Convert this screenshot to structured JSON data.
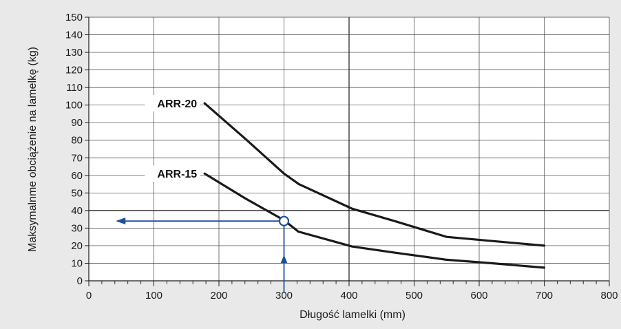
{
  "chart_data": {
    "type": "line",
    "xlabel": "Długość lamelki (mm)",
    "ylabel": "Maksymalnme obciążenie na lamelkę  (kg)",
    "xlim": [
      0,
      800
    ],
    "ylim": [
      0,
      150
    ],
    "x_ticks": [
      "0",
      "100",
      "200",
      "300",
      "400",
      "500",
      "600",
      "700",
      "800"
    ],
    "y_ticks": [
      "0",
      "10",
      "20",
      "30",
      "40",
      "50",
      "60",
      "70",
      "80",
      "90",
      "100",
      "110",
      "120",
      "130",
      "140",
      "150"
    ],
    "grid": true,
    "colors": {
      "series": "#1a1a1a",
      "guide": "#1f4f9c",
      "grid": "#3a3a3a",
      "plot_bg": "#ffffff",
      "page_bg": "#e9e9ea"
    },
    "series": [
      {
        "name": "ARR-20",
        "points": [
          [
            178,
            101
          ],
          [
            240,
            81
          ],
          [
            300,
            61
          ],
          [
            323,
            55
          ],
          [
            405,
            41
          ],
          [
            470,
            34
          ],
          [
            550,
            25
          ],
          [
            610,
            23
          ],
          [
            700,
            20
          ]
        ]
      },
      {
        "name": "ARR-15",
        "points": [
          [
            178,
            61
          ],
          [
            240,
            47
          ],
          [
            300,
            34.5
          ],
          [
            322,
            28
          ],
          [
            405,
            19.5
          ],
          [
            470,
            16
          ],
          [
            550,
            12
          ],
          [
            620,
            10
          ],
          [
            700,
            7.5
          ]
        ]
      }
    ],
    "annotation": {
      "marker_point": [
        300,
        34
      ],
      "guide_x": 300,
      "guide_y": 34,
      "arrow_up_to": [
        300,
        12
      ],
      "arrow_left_to": [
        50,
        34
      ]
    }
  }
}
